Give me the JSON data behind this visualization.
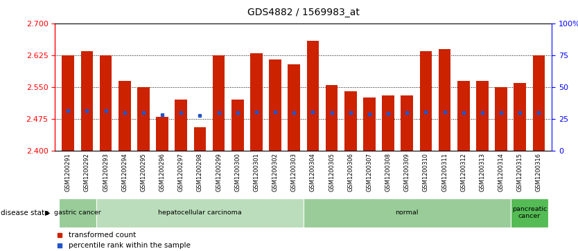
{
  "title": "GDS4882 / 1569983_at",
  "categories": [
    "GSM1200291",
    "GSM1200292",
    "GSM1200293",
    "GSM1200294",
    "GSM1200295",
    "GSM1200296",
    "GSM1200297",
    "GSM1200298",
    "GSM1200299",
    "GSM1200300",
    "GSM1200301",
    "GSM1200302",
    "GSM1200303",
    "GSM1200304",
    "GSM1200305",
    "GSM1200306",
    "GSM1200307",
    "GSM1200308",
    "GSM1200309",
    "GSM1200310",
    "GSM1200311",
    "GSM1200312",
    "GSM1200313",
    "GSM1200314",
    "GSM1200315",
    "GSM1200316"
  ],
  "bar_tops": [
    2.625,
    2.635,
    2.625,
    2.565,
    2.55,
    2.48,
    2.52,
    2.455,
    2.625,
    2.52,
    2.63,
    2.615,
    2.605,
    2.66,
    2.555,
    2.54,
    2.525,
    2.53,
    2.53,
    2.635,
    2.64,
    2.565,
    2.565,
    2.55,
    2.56,
    2.625
  ],
  "blue_markers": [
    2.495,
    2.495,
    2.495,
    2.49,
    2.49,
    2.484,
    2.49,
    2.483,
    2.49,
    2.49,
    2.492,
    2.492,
    2.49,
    2.492,
    2.49,
    2.49,
    2.487,
    2.488,
    2.49,
    2.492,
    2.492,
    2.49,
    2.49,
    2.49,
    2.49,
    2.49
  ],
  "ymin": 2.4,
  "ymax": 2.7,
  "yticks": [
    2.4,
    2.475,
    2.55,
    2.625,
    2.7
  ],
  "right_yticks": [
    0,
    25,
    50,
    75,
    100
  ],
  "bar_color": "#CC2200",
  "blue_color": "#2255CC",
  "disease_groups": [
    {
      "label": "gastric cancer",
      "start": 0,
      "end": 2,
      "color": "#99cc99"
    },
    {
      "label": "hepatocellular carcinoma",
      "start": 2,
      "end": 13,
      "color": "#bbddbb"
    },
    {
      "label": "normal",
      "start": 13,
      "end": 24,
      "color": "#99cc99"
    },
    {
      "label": "pancreatic\ncancer",
      "start": 24,
      "end": 26,
      "color": "#55bb55"
    }
  ],
  "disease_state_label": "disease state",
  "legend_items": [
    {
      "label": "transformed count",
      "color": "#CC2200"
    },
    {
      "label": "percentile rank within the sample",
      "color": "#2255CC"
    }
  ],
  "background_color": "#ffffff",
  "xtick_bg": "#cccccc",
  "grid_dotted": [
    2.475,
    2.55,
    2.625
  ]
}
